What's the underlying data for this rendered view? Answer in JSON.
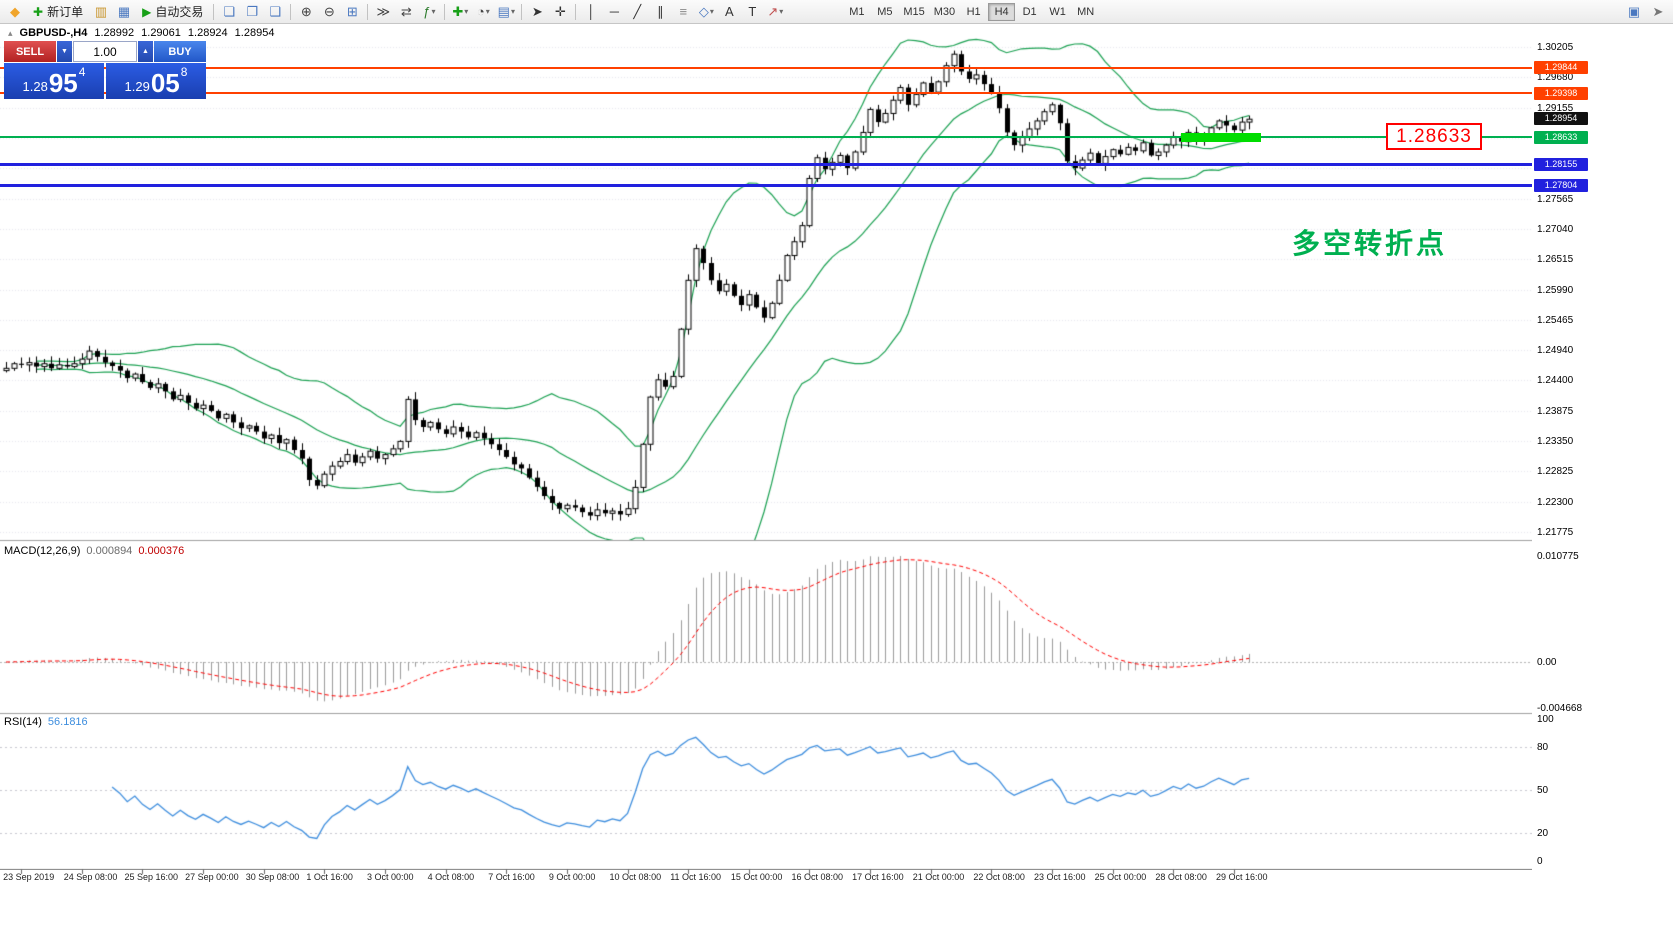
{
  "toolbar": {
    "left_items": [
      {
        "type": "icon",
        "name": "mt4-logo-icon",
        "glyph": "◆",
        "color": "#f0a42a"
      },
      {
        "type": "button",
        "name": "new-order-button",
        "icon": "new-order-icon",
        "glyph": "✚",
        "color": "#18a018",
        "label": "新订单"
      },
      {
        "type": "icon",
        "name": "market-watch-icon",
        "glyph": "▥",
        "color": "#c9952c"
      },
      {
        "type": "icon",
        "name": "data-window-icon",
        "glyph": "▦",
        "color": "#4a78c0"
      },
      {
        "type": "button",
        "name": "autotrading-button",
        "icon": "autotrading-icon",
        "glyph": "▶",
        "color": "#18a018",
        "label": "自动交易"
      },
      {
        "type": "sep"
      },
      {
        "type": "icon",
        "name": "new-chart-icon",
        "glyph": "❏",
        "color": "#4a78c0"
      },
      {
        "type": "icon",
        "name": "profiles-icon",
        "glyph": "❐",
        "color": "#4a78c0"
      },
      {
        "type": "icon",
        "name": "tile-windows-icon",
        "glyph": "❑",
        "color": "#4a78c0"
      },
      {
        "type": "sep"
      },
      {
        "type": "icon",
        "name": "zoom-in-icon",
        "glyph": "⊕",
        "color": "#444444"
      },
      {
        "type": "icon",
        "name": "zoom-out-icon",
        "glyph": "⊖",
        "color": "#444444"
      },
      {
        "type": "icon",
        "name": "grid-icon",
        "glyph": "⊞",
        "color": "#4a78c0"
      },
      {
        "type": "sep"
      },
      {
        "type": "icon",
        "name": "auto-scroll-icon",
        "glyph": "≫",
        "color": "#444444"
      },
      {
        "type": "icon",
        "name": "chart-shift-icon",
        "glyph": "⇄",
        "color": "#444444"
      },
      {
        "type": "icon",
        "name": "indicators-icon",
        "glyph": "ƒ",
        "color": "#2a7a2a",
        "dropdown": true
      },
      {
        "type": "sep"
      },
      {
        "type": "icon",
        "name": "add-object-icon",
        "glyph": "✚",
        "color": "#18a018",
        "dropdown": true
      },
      {
        "type": "icon",
        "name": "periods-icon",
        "glyph": "◔",
        "color": "#444444",
        "dropdown": true
      },
      {
        "type": "icon",
        "name": "templates-icon",
        "glyph": "▤",
        "color": "#4a78c0",
        "dropdown": true
      },
      {
        "type": "sep"
      },
      {
        "type": "icon",
        "name": "cursor-icon",
        "glyph": "➤",
        "color": "#333333"
      },
      {
        "type": "icon",
        "name": "crosshair-icon",
        "glyph": "✛",
        "color": "#333333"
      },
      {
        "type": "sep"
      },
      {
        "type": "icon",
        "name": "vertical-line-icon",
        "glyph": "│",
        "color": "#333333"
      },
      {
        "type": "icon",
        "name": "horizontal-line-icon",
        "glyph": "─",
        "color": "#333333"
      },
      {
        "type": "icon",
        "name": "trendline-icon",
        "glyph": "╱",
        "color": "#333333"
      },
      {
        "type": "icon",
        "name": "channel-icon",
        "glyph": "∥",
        "color": "#333333"
      },
      {
        "type": "icon",
        "name": "fibonacci-icon",
        "glyph": "≡",
        "color": "#8a8a8a"
      },
      {
        "type": "icon",
        "name": "shapes-icon",
        "glyph": "◇",
        "color": "#4a78c0",
        "dropdown": true
      },
      {
        "type": "icon",
        "name": "text-icon",
        "glyph": "A",
        "color": "#333333"
      },
      {
        "type": "icon",
        "name": "text-label-icon",
        "glyph": "T",
        "color": "#333333"
      },
      {
        "type": "icon",
        "name": "arrows-icon",
        "glyph": "↗",
        "color": "#c05050",
        "dropdown": true
      }
    ],
    "timeframes": [
      "M1",
      "M5",
      "M15",
      "M30",
      "H1",
      "H4",
      "D1",
      "W1",
      "MN"
    ],
    "active_timeframe": "H4",
    "right_items": [
      {
        "type": "icon",
        "name": "fullscreen-icon",
        "glyph": "▣",
        "color": "#4a78c0"
      },
      {
        "type": "icon",
        "name": "window-mode-icon",
        "glyph": "➤",
        "color": "#777777"
      }
    ]
  },
  "chart": {
    "symbol": "GBPUSD-,H4",
    "open": "1.28992",
    "high": "1.29061",
    "low": "1.28924",
    "close": "1.28954",
    "trade_panel": {
      "sell_label": "SELL",
      "buy_label": "BUY",
      "volume": "1.00",
      "sell_price_main": "1.28",
      "sell_price_big": "95",
      "sell_price_sup": "4",
      "buy_price_main": "1.29",
      "buy_price_big": "05",
      "buy_price_sup": "8"
    },
    "annotation": "多空转折点",
    "callout": "1.28633",
    "y_axis_labels": [
      "1.30205",
      "1.29680",
      "1.29155",
      "1.28630",
      "1.28105",
      "1.27565",
      "1.27040",
      "1.26515",
      "1.25990",
      "1.25465",
      "1.24940",
      "1.24400",
      "1.23875",
      "1.23350",
      "1.22825",
      "1.22300",
      "1.21775"
    ],
    "levels": [
      {
        "label": "1.29844",
        "value": 1.29844,
        "color": "#FF4000",
        "width": 2
      },
      {
        "label": "1.29398",
        "value": 1.29398,
        "color": "#FF4000",
        "width": 2
      },
      {
        "label": "1.28633",
        "value": 1.28633,
        "color": "#00B050",
        "width": 2
      },
      {
        "label": "1.28155",
        "value": 1.28155,
        "color": "#2121DE",
        "width": 3
      },
      {
        "label": "1.27804",
        "value": 1.27804,
        "color": "#2121DE",
        "width": 3
      }
    ],
    "current_price": {
      "label": "1.28954",
      "value": 1.28954,
      "color": "#111111"
    },
    "highlight": {
      "price": 1.28633,
      "from_bar": 155,
      "to_bar": 165,
      "color": "#00DD00"
    }
  },
  "macd": {
    "title": "MACD(12,26,9)",
    "value": "0.000894",
    "signal": "0.000376",
    "axis": [
      {
        "label": "0.010775",
        "value": 0.010775
      },
      {
        "label": "0.00",
        "value": 0
      },
      {
        "label": "-0.004668",
        "value": -0.004668
      }
    ]
  },
  "rsi": {
    "title": "RSI(14)",
    "value": "56.1816",
    "axis": [
      {
        "label": "100",
        "value": 100
      },
      {
        "label": "80",
        "value": 80
      },
      {
        "label": "50",
        "value": 50
      },
      {
        "label": "20",
        "value": 20
      },
      {
        "label": "0",
        "value": 0
      }
    ],
    "levels": [
      80,
      50,
      20
    ]
  },
  "x_axis_labels": [
    {
      "label": "23 Sep 2019",
      "bar": 2
    },
    {
      "label": "24 Sep 08:00",
      "bar": 10
    },
    {
      "label": "25 Sep 16:00",
      "bar": 18
    },
    {
      "label": "27 Sep 00:00",
      "bar": 26
    },
    {
      "label": "30 Sep 08:00",
      "bar": 34
    },
    {
      "label": "1 Oct 16:00",
      "bar": 42
    },
    {
      "label": "3 Oct 00:00",
      "bar": 50
    },
    {
      "label": "4 Oct 08:00",
      "bar": 58
    },
    {
      "label": "7 Oct 16:00",
      "bar": 66
    },
    {
      "label": "9 Oct 00:00",
      "bar": 74
    },
    {
      "label": "10 Oct 08:00",
      "bar": 82
    },
    {
      "label": "11 Oct 16:00",
      "bar": 90
    },
    {
      "label": "15 Oct 00:00",
      "bar": 98
    },
    {
      "label": "16 Oct 08:00",
      "bar": 106
    },
    {
      "label": "17 Oct 16:00",
      "bar": 114
    },
    {
      "label": "21 Oct 00:00",
      "bar": 122
    },
    {
      "label": "22 Oct 08:00",
      "bar": 130
    },
    {
      "label": "23 Oct 16:00",
      "bar": 138
    },
    {
      "label": "25 Oct 00:00",
      "bar": 146
    },
    {
      "label": "28 Oct 08:00",
      "bar": 154
    },
    {
      "label": "29 Oct 16:00",
      "bar": 162
    }
  ],
  "chart_data": {
    "type": "candlestick",
    "symbol": "GBPUSD",
    "timeframe": "H4",
    "title": "GBPUSD-,H4",
    "y_range": [
      1.21775,
      1.30205
    ],
    "closes": [
      1.2462,
      1.247,
      1.2468,
      1.2472,
      1.2465,
      1.247,
      1.2462,
      1.2468,
      1.2465,
      1.247,
      1.2478,
      1.2492,
      1.2482,
      1.2472,
      1.2466,
      1.2458,
      1.2445,
      1.2452,
      1.2438,
      1.2428,
      1.2435,
      1.2422,
      1.2408,
      1.2415,
      1.2402,
      1.2392,
      1.2398,
      1.2388,
      1.2375,
      1.2382,
      1.2368,
      1.2358,
      1.2362,
      1.2352,
      1.234,
      1.2346,
      1.2332,
      1.2338,
      1.232,
      1.2305,
      1.2268,
      1.2258,
      1.2278,
      1.2292,
      1.23,
      1.2312,
      1.2298,
      1.2308,
      1.2318,
      1.2305,
      1.2312,
      1.2322,
      1.2335,
      1.2408,
      1.2372,
      1.236,
      1.2368,
      1.2356,
      1.2348,
      1.236,
      1.2352,
      1.2342,
      1.235,
      1.234,
      1.233,
      1.232,
      1.2308,
      1.2295,
      1.2288,
      1.2272,
      1.2256,
      1.224,
      1.2228,
      1.2218,
      1.2224,
      1.222,
      1.2212,
      1.2206,
      1.2216,
      1.221,
      1.2214,
      1.2208,
      1.2218,
      1.2255,
      1.233,
      1.2412,
      1.2442,
      1.243,
      1.2448,
      1.253,
      1.2615,
      1.267,
      1.2645,
      1.2615,
      1.2596,
      1.2608,
      1.2588,
      1.2572,
      1.259,
      1.2568,
      1.255,
      1.2575,
      1.2615,
      1.2658,
      1.2682,
      1.271,
      1.2792,
      1.2828,
      1.2808,
      1.282,
      1.2832,
      1.281,
      1.2838,
      1.2872,
      1.2912,
      1.289,
      1.2905,
      1.2928,
      1.295,
      1.292,
      1.2938,
      1.2958,
      1.2942,
      1.296,
      1.2988,
      1.3008,
      1.2978,
      1.2965,
      1.2972,
      1.2956,
      1.294,
      1.2914,
      1.2872,
      1.285,
      1.2864,
      1.2878,
      1.2892,
      1.2908,
      1.292,
      1.2888,
      1.2822,
      1.281,
      1.2824,
      1.2836,
      1.2818,
      1.283,
      1.2842,
      1.2834,
      1.2846,
      1.284,
      1.2854,
      1.2832,
      1.2838,
      1.285,
      1.2864,
      1.2856,
      1.2872,
      1.286,
      1.2866,
      1.288,
      1.2892,
      1.2884,
      1.2876,
      1.289,
      1.2895
    ],
    "indicators": {
      "bollinger_period": 20,
      "bollinger_dev": 2,
      "macd": [
        12,
        26,
        9
      ],
      "rsi_period": 14
    },
    "colors": {
      "band_green": "#1BA152",
      "macd_hist": "#9b9b9b",
      "macd_signal": "#FF0000",
      "rsi_line": "#3E8EDE",
      "candle_up": "#ffffff",
      "candle_down": "#000000",
      "candle_border": "#000000"
    }
  }
}
